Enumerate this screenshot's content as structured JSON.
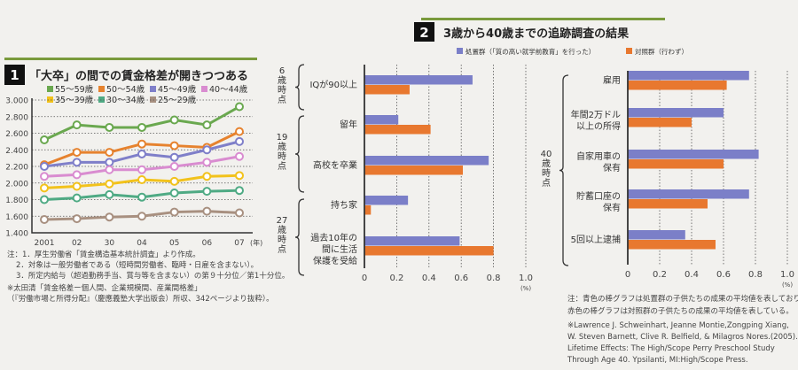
{
  "chart_data": [
    {
      "type": "line",
      "number": "1",
      "title": "「大卒」の間での賃金格差が開きつつある",
      "x": [
        "2001",
        "02",
        "30",
        "04",
        "05",
        "06",
        "07"
      ],
      "x_unit": "(年)",
      "ylim": [
        1400,
        3000
      ],
      "yticks": [
        "1.400",
        "1.600",
        "1.800",
        "2.000",
        "2.200",
        "2.400",
        "2.600",
        "2.800",
        "3.000"
      ],
      "grid": "horizontal dotted",
      "legend": "top",
      "series": [
        {
          "name": "55〜59歳",
          "color": "#6aa84f",
          "values": [
            2520,
            2700,
            2670,
            2670,
            2760,
            2700,
            2920
          ]
        },
        {
          "name": "50〜54歳",
          "color": "#e6822e",
          "values": [
            2220,
            2370,
            2370,
            2470,
            2450,
            2430,
            2620
          ]
        },
        {
          "name": "45〜49歳",
          "color": "#7f7fc9",
          "values": [
            2200,
            2250,
            2250,
            2350,
            2310,
            2400,
            2500
          ]
        },
        {
          "name": "40〜44歳",
          "color": "#d98cd0",
          "values": [
            2080,
            2100,
            2160,
            2160,
            2200,
            2250,
            2320
          ]
        },
        {
          "name": "35〜39歳",
          "color": "#f2c21b",
          "values": [
            1940,
            1960,
            1990,
            2040,
            2020,
            2080,
            2090
          ]
        },
        {
          "name": "30〜34歳",
          "color": "#4faa84",
          "values": [
            1800,
            1820,
            1860,
            1830,
            1880,
            1900,
            1910
          ]
        },
        {
          "name": "25〜29歳",
          "color": "#a89080",
          "values": [
            1560,
            1570,
            1590,
            1600,
            1650,
            1660,
            1640
          ]
        }
      ],
      "notes": [
        "注：1．厚生労働省「賃金構造基本統計調査」より作成。",
        "2．対象は一般労働者である（短時間労働者、臨時・日雇を含まない）。",
        "3．所定内給与（超過勤務手当、賞与等を含まない）の第９十分位／第1十分位。"
      ],
      "source": [
        "※太田清「賃金格差ー個人間、企業規模間、産業間格差」",
        "（『労働市場と所得分配』（慶應義塾大学出版会）所収、342ページより抜粋）。"
      ]
    },
    {
      "type": "bar",
      "orientation": "horizontal",
      "number": "2",
      "title": "3歳から40歳までの追跡調査の結果",
      "legend": "top",
      "series_names": [
        "処置群（「質の高い就学前教育」を行った）",
        "対照群（行わず）"
      ],
      "colors": [
        "#7b7fc8",
        "#e8782f"
      ],
      "xlim": [
        0,
        1.0
      ],
      "xticks": [
        "0",
        "0.2",
        "0.4",
        "0.6",
        "0.8",
        "1.0"
      ],
      "x_unit": "(%)",
      "panels": [
        {
          "groups": [
            {
              "label": "6歳時点",
              "categories": [
                {
                  "name": "IQが90以上",
                  "values": [
                    0.67,
                    0.28
                  ]
                }
              ]
            },
            {
              "label": "19歳時点",
              "categories": [
                {
                  "name": "留年",
                  "values": [
                    0.21,
                    0.41
                  ]
                },
                {
                  "name": "高校を卒業",
                  "values": [
                    0.77,
                    0.61
                  ]
                }
              ]
            },
            {
              "label": "27歳時点",
              "categories": [
                {
                  "name": "持ち家",
                  "values": [
                    0.27,
                    0.04
                  ]
                },
                {
                  "name": "過去10年の間に生活保護を受給",
                  "values": [
                    0.59,
                    0.8
                  ]
                }
              ]
            }
          ]
        },
        {
          "groups": [
            {
              "label": "40歳時点",
              "categories": [
                {
                  "name": "雇用",
                  "values": [
                    0.76,
                    0.62
                  ]
                },
                {
                  "name": "年間2万ドル以上の所得",
                  "values": [
                    0.6,
                    0.4
                  ]
                },
                {
                  "name": "自家用車の保有",
                  "values": [
                    0.82,
                    0.6
                  ]
                },
                {
                  "name": "貯蓄口座の保有",
                  "values": [
                    0.76,
                    0.5
                  ]
                },
                {
                  "name": "5回以上逮捕",
                  "values": [
                    0.36,
                    0.55
                  ]
                }
              ]
            }
          ]
        }
      ],
      "notes": [
        "注：青色の棒グラフは処置群の子供たちの成果の平均値を表しており、",
        "赤色の棒グラフは対照群の子供たちの成果の平均値を表している。"
      ],
      "source": [
        "※Lawrence J. Schweinhart, Jeanne Montie,Zongping Xiang,",
        "W. Steven Barnett, Clive R. Belfield, & Milagros Nores.(2005).",
        "Lifetime Effects: The High/Scope Perry Preschool Study",
        "Through Age 40. Ypsilanti, MI:High/Scope Press."
      ]
    }
  ],
  "accent_green": "#7a9a3c"
}
